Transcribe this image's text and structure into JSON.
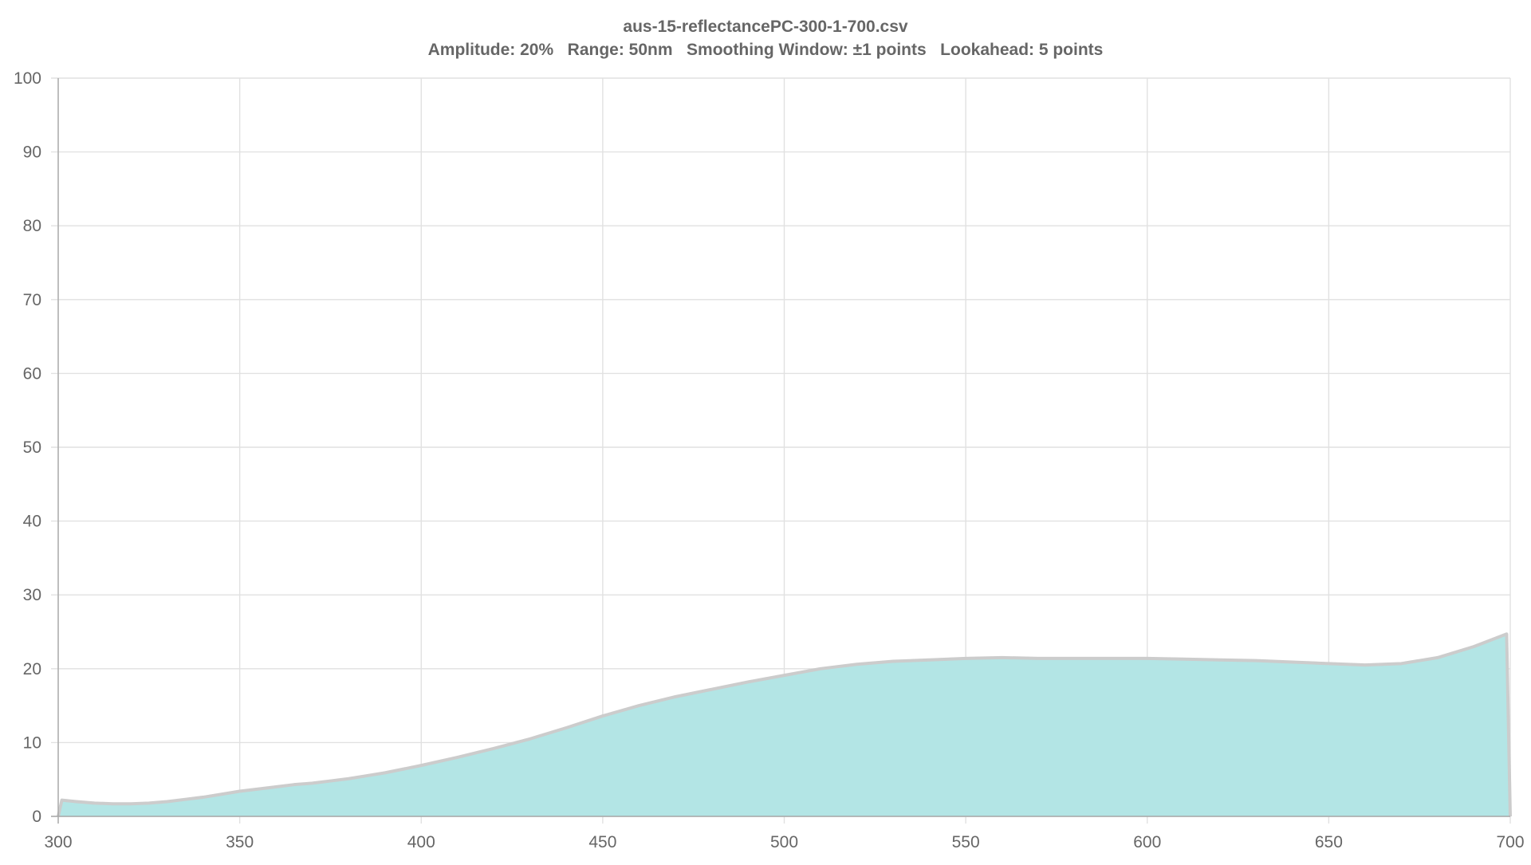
{
  "chart_data": {
    "type": "area",
    "title": "aus-15-reflectancePC-300-1-700.csv",
    "subtitle": "Amplitude: 20%   Range: 50nm   Smoothing Window: ±1 points   Lookahead: 5 points",
    "xlabel": "",
    "ylabel": "",
    "xlim": [
      300,
      700
    ],
    "ylim": [
      0,
      100
    ],
    "x_ticks": [
      300,
      350,
      400,
      450,
      500,
      550,
      600,
      650,
      700
    ],
    "y_ticks": [
      0,
      10,
      20,
      30,
      40,
      50,
      60,
      70,
      80,
      90,
      100
    ],
    "grid": true,
    "colors": {
      "fill": "#b3e5e5",
      "line": "#cccccc",
      "grid": "#e1e1e1",
      "text": "#666666"
    },
    "series": [
      {
        "x": [
          300,
          301,
          305,
          310,
          315,
          320,
          325,
          330,
          335,
          340,
          345,
          350,
          355,
          360,
          365,
          370,
          375,
          380,
          385,
          390,
          395,
          400,
          410,
          420,
          430,
          440,
          450,
          460,
          470,
          480,
          490,
          500,
          510,
          520,
          530,
          540,
          550,
          560,
          570,
          580,
          590,
          600,
          610,
          620,
          630,
          640,
          650,
          660,
          670,
          680,
          690,
          699,
          700
        ],
        "y": [
          0,
          2.2,
          2.0,
          1.8,
          1.7,
          1.7,
          1.8,
          2.0,
          2.3,
          2.6,
          3.0,
          3.4,
          3.7,
          4.0,
          4.3,
          4.5,
          4.8,
          5.1,
          5.5,
          5.9,
          6.4,
          6.9,
          8.0,
          9.2,
          10.5,
          12.0,
          13.6,
          15.0,
          16.2,
          17.2,
          18.2,
          19.1,
          20.0,
          20.6,
          21.0,
          21.2,
          21.4,
          21.5,
          21.4,
          21.4,
          21.4,
          21.4,
          21.3,
          21.2,
          21.1,
          20.9,
          20.7,
          20.5,
          20.7,
          21.5,
          23.0,
          24.7,
          0
        ]
      }
    ]
  }
}
